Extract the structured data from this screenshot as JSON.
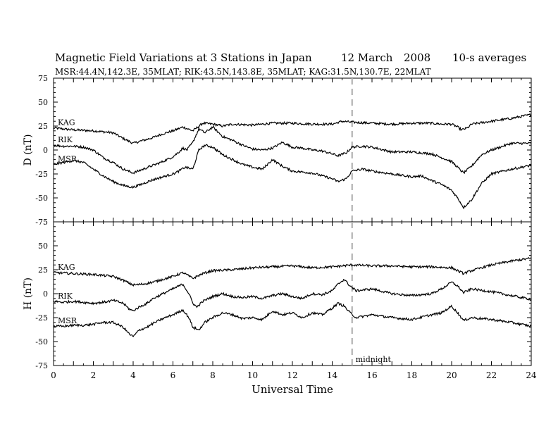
{
  "title": "Magnetic Field Variations at 3 Stations in Japan",
  "date": "12 March",
  "year": "2008",
  "averaging": "10-s averages",
  "subtitle": "MSR:44.4N,142.3E, 35MLAT;   RIK:43.5N,143.8E, 35MLAT;   KAG:31.5N,130.7E, 22MLAT",
  "colors": {
    "trace": "#000000",
    "midnight_line": "#aaaaaa",
    "axis": "#000000"
  },
  "chart_data": [
    {
      "type": "line",
      "panel": "D",
      "ylabel": "D (nT)",
      "xlabel": "",
      "ylim": [
        -75,
        75
      ],
      "yticks": [
        75,
        50,
        25,
        0,
        -25,
        -50,
        -75
      ],
      "xlim": [
        0,
        24
      ],
      "series": [
        {
          "name": "KAG",
          "label": "KAG",
          "x": [
            0,
            1,
            2,
            3,
            3.5,
            4,
            4.5,
            5,
            5.5,
            6,
            6.5,
            7,
            7.5,
            8,
            8.5,
            9,
            10,
            11,
            12,
            13,
            14,
            14.5,
            15,
            16,
            17,
            18,
            19,
            19.5,
            20,
            20.3,
            20.5,
            20.8,
            21,
            22,
            23,
            24
          ],
          "y": [
            23,
            21,
            20,
            18,
            12,
            7,
            10,
            13,
            17,
            20,
            24,
            20,
            28,
            27,
            25,
            27,
            26,
            28,
            28,
            27,
            27,
            30,
            29,
            28,
            27,
            28,
            28,
            27,
            27,
            24,
            21,
            23,
            27,
            30,
            33,
            37
          ]
        },
        {
          "name": "RIK",
          "label": "RIK",
          "x": [
            0,
            0.5,
            1,
            1.5,
            2,
            2.5,
            3,
            3.5,
            4,
            4.5,
            5,
            5.5,
            6,
            6.3,
            6.5,
            6.7,
            7,
            7.3,
            7.6,
            8,
            8.5,
            9,
            9.5,
            10,
            10.5,
            11,
            11.5,
            12,
            12.5,
            13,
            13.5,
            14,
            14.3,
            14.7,
            15,
            15.5,
            16,
            17,
            18,
            19,
            19.5,
            20,
            20.3,
            20.6,
            21,
            21.5,
            22,
            23,
            24
          ],
          "y": [
            5,
            4,
            4,
            3,
            0,
            -8,
            -13,
            -20,
            -24,
            -20,
            -16,
            -12,
            -7,
            -2,
            2,
            0,
            8,
            22,
            18,
            24,
            14,
            10,
            5,
            1,
            0,
            2,
            8,
            3,
            2,
            0,
            -1,
            -4,
            -6,
            -3,
            3,
            4,
            3,
            -2,
            -2,
            -4,
            -8,
            -12,
            -18,
            -24,
            -17,
            -5,
            0,
            7,
            7
          ]
        },
        {
          "name": "MSR",
          "label": "MSR",
          "x": [
            0,
            0.5,
            1,
            1.5,
            2,
            2.5,
            3,
            3.5,
            4,
            4.5,
            5,
            5.5,
            6,
            6.3,
            6.6,
            7,
            7.3,
            7.6,
            8,
            8.5,
            9,
            9.5,
            10,
            10.5,
            11,
            11.5,
            12,
            13,
            14,
            14.3,
            14.7,
            15,
            15.5,
            16,
            17,
            18,
            18.5,
            19,
            19.5,
            20,
            20.3,
            20.6,
            21,
            21.5,
            22,
            23,
            24
          ],
          "y": [
            -15,
            -13,
            -11,
            -13,
            -20,
            -27,
            -33,
            -37,
            -39,
            -35,
            -31,
            -28,
            -25,
            -22,
            -18,
            -20,
            0,
            5,
            3,
            -5,
            -10,
            -15,
            -18,
            -20,
            -10,
            -17,
            -22,
            -24,
            -30,
            -33,
            -30,
            -22,
            -20,
            -22,
            -25,
            -28,
            -27,
            -32,
            -36,
            -42,
            -50,
            -60,
            -52,
            -35,
            -25,
            -20,
            -16
          ]
        }
      ]
    },
    {
      "type": "line",
      "panel": "H",
      "ylabel": "H (nT)",
      "xlabel": "Universal Time",
      "ylim": [
        -75,
        75
      ],
      "yticks": [
        75,
        50,
        25,
        0,
        -25,
        -50,
        -75
      ],
      "xlim": [
        0,
        24
      ],
      "xticks": [
        0,
        2,
        4,
        6,
        8,
        10,
        12,
        14,
        16,
        18,
        20,
        22,
        24
      ],
      "series": [
        {
          "name": "KAG",
          "label": "KAG",
          "x": [
            0,
            1,
            2,
            3,
            3.5,
            4,
            4.5,
            5,
            5.5,
            6,
            6.5,
            7,
            7.5,
            8,
            9,
            10,
            11,
            12,
            13,
            14,
            15,
            16,
            17,
            18,
            19,
            20,
            20.3,
            20.6,
            21,
            22,
            23,
            24
          ],
          "y": [
            22,
            21,
            20,
            18,
            14,
            9,
            10,
            12,
            15,
            18,
            22,
            16,
            21,
            24,
            25,
            27,
            28,
            29,
            27,
            28,
            30,
            29,
            29,
            28,
            28,
            27,
            24,
            21,
            24,
            30,
            34,
            37
          ]
        },
        {
          "name": "RIK",
          "label": "RIK",
          "x": [
            0,
            0.5,
            1,
            1.5,
            2,
            2.5,
            3,
            3.5,
            3.8,
            4,
            4.3,
            4.7,
            5,
            5.5,
            6,
            6.5,
            6.8,
            7,
            7.2,
            7.5,
            8,
            8.5,
            9,
            9.5,
            10,
            10.5,
            11,
            11.5,
            12,
            12.5,
            13,
            13.5,
            14,
            14.3,
            14.6,
            14.9,
            15.2,
            16,
            17,
            18,
            19,
            19.5,
            20,
            20.3,
            20.6,
            21,
            22,
            23,
            24
          ],
          "y": [
            -8,
            -9,
            -8,
            -9,
            -10,
            -9,
            -7,
            -10,
            -16,
            -18,
            -14,
            -10,
            -5,
            0,
            5,
            10,
            0,
            -10,
            -14,
            -8,
            -3,
            0,
            -3,
            -4,
            -3,
            -5,
            -2,
            0,
            -3,
            -5,
            0,
            -1,
            3,
            10,
            15,
            8,
            3,
            5,
            0,
            -2,
            0,
            5,
            12,
            8,
            1,
            5,
            2,
            -2,
            -6
          ]
        },
        {
          "name": "MSR",
          "label": "MSR",
          "x": [
            0,
            0.5,
            1,
            1.5,
            2,
            2.5,
            3,
            3.5,
            3.8,
            4,
            4.3,
            4.7,
            5,
            5.5,
            6,
            6.5,
            6.8,
            7,
            7.3,
            7.6,
            8,
            8.5,
            9,
            9.5,
            10,
            10.5,
            11,
            11.5,
            12,
            12.5,
            13,
            13.5,
            14,
            14.3,
            14.6,
            14.9,
            15.2,
            16,
            17,
            18,
            19,
            19.5,
            20,
            20.3,
            20.6,
            21,
            22,
            23,
            24
          ],
          "y": [
            -34,
            -34,
            -33,
            -33,
            -32,
            -30,
            -30,
            -35,
            -42,
            -45,
            -38,
            -35,
            -31,
            -26,
            -22,
            -17,
            -25,
            -35,
            -38,
            -30,
            -25,
            -20,
            -22,
            -26,
            -25,
            -27,
            -18,
            -22,
            -20,
            -25,
            -20,
            -22,
            -15,
            -10,
            -13,
            -20,
            -25,
            -22,
            -25,
            -27,
            -22,
            -20,
            -13,
            -20,
            -28,
            -25,
            -27,
            -30,
            -34
          ]
        }
      ]
    }
  ],
  "midnight": {
    "x": 15,
    "label": "midnight"
  }
}
